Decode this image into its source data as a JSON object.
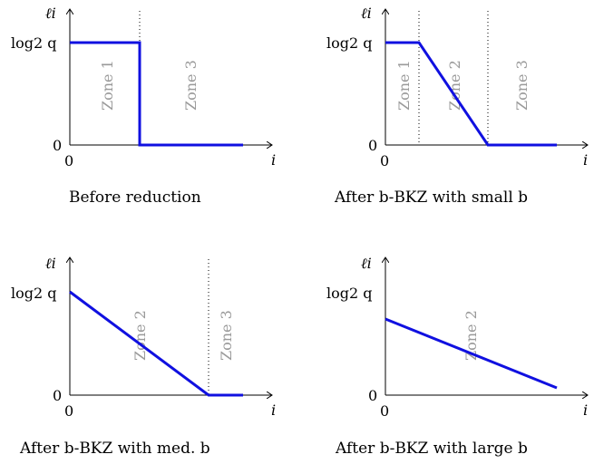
{
  "panels": [
    {
      "y_axis_label": "ℓi",
      "x_axis_label": "i",
      "y_tick_top": "log2 q",
      "y_tick_zero": "0",
      "x_tick_zero": "0",
      "caption": "Before reduction",
      "zones": [
        "Zone 1",
        "Zone 3"
      ]
    },
    {
      "y_axis_label": "ℓi",
      "x_axis_label": "i",
      "y_tick_top": "log2 q",
      "y_tick_zero": "0",
      "x_tick_zero": "0",
      "caption": "After b-BKZ with small b",
      "zones": [
        "Zone 1",
        "Zone 2",
        "Zone 3"
      ]
    },
    {
      "y_axis_label": "ℓi",
      "x_axis_label": "i",
      "y_tick_top": "log2 q",
      "y_tick_zero": "0",
      "x_tick_zero": "0",
      "caption": "After b-BKZ with med. b",
      "zones": [
        "Zone 2",
        "Zone 3"
      ]
    },
    {
      "y_axis_label": "ℓi",
      "x_axis_label": "i",
      "y_tick_top": "log2 q",
      "y_tick_zero": "0",
      "x_tick_zero": "0",
      "caption": "After b-BKZ with large b",
      "zones": [
        "Zone 2"
      ]
    }
  ],
  "colors": {
    "curve": "#1010e0",
    "zone_text": "#9a9a9a"
  }
}
